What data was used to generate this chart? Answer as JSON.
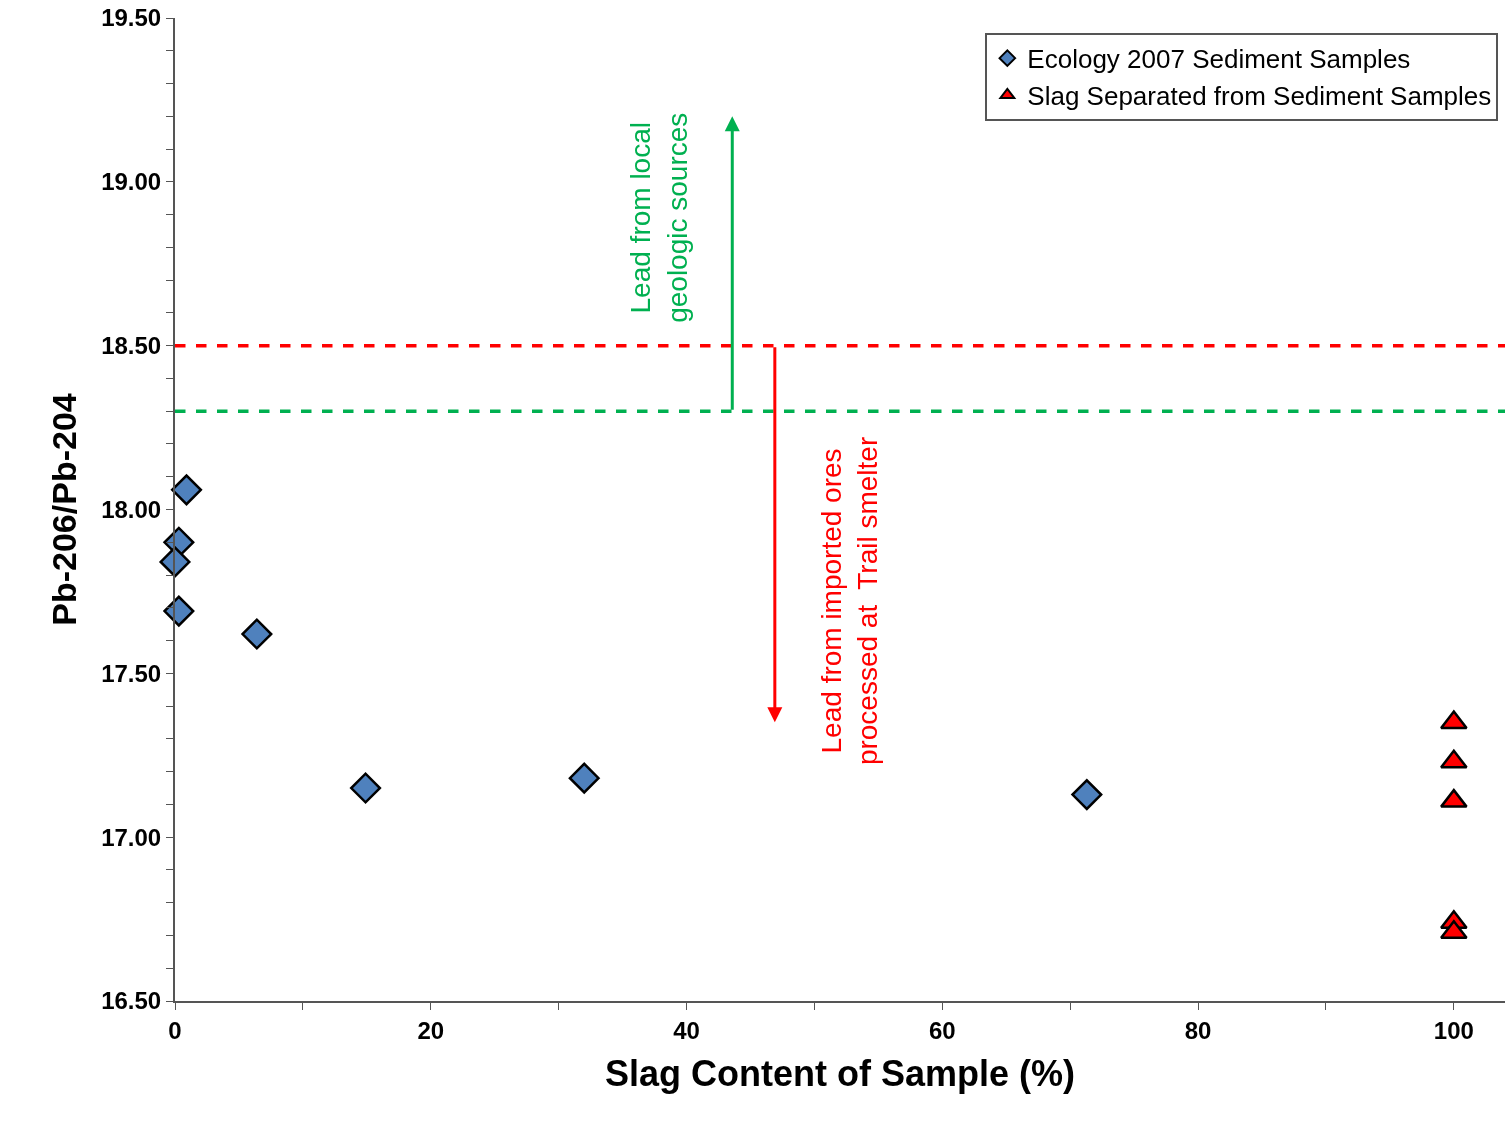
{
  "chart_data": {
    "type": "scatter",
    "xlabel": "Slag Content of Sample (%)",
    "ylabel": "Pb-206/Pb-204",
    "series": [
      {
        "name": "Ecology 2007 Sediment Samples",
        "color": "#4f81bd",
        "marker": "diamond",
        "x": [
          0.9,
          0.3,
          0,
          0.3,
          6.4,
          14.9,
          32,
          71.3
        ],
        "values": [
          18.06,
          17.9,
          17.84,
          17.69,
          17.62,
          17.15,
          17.18,
          17.13
        ]
      },
      {
        "name": "Slag Separated from Sediment Samples",
        "color": "#ff0000",
        "marker": "triangle",
        "x": [
          100,
          100,
          100,
          100,
          100
        ],
        "values": [
          17.35,
          17.23,
          17.11,
          16.74,
          16.71
        ]
      }
    ],
    "xlim": [
      0,
      104
    ],
    "xticks": [
      0,
      {
        "value": 10,
        "label": null
      },
      20,
      {
        "value": 30,
        "label": null
      },
      40,
      {
        "value": 50,
        "label": null
      },
      60,
      {
        "value": 70,
        "label": null
      },
      80,
      {
        "value": 90,
        "label": null
      },
      100
    ],
    "ylim": [
      16.5,
      19.5
    ],
    "yticks": [
      {
        "value": 16.5,
        "label": "16.50"
      },
      {
        "value": 16.6,
        "label": null
      },
      {
        "value": 16.7,
        "label": null
      },
      {
        "value": 16.8,
        "label": null
      },
      {
        "value": 16.9,
        "label": null
      },
      {
        "value": 17.0,
        "label": "17.00"
      },
      {
        "value": 17.1,
        "label": null
      },
      {
        "value": 17.2,
        "label": null
      },
      {
        "value": 17.3,
        "label": null
      },
      {
        "value": 17.4,
        "label": null
      },
      {
        "value": 17.5,
        "label": "17.50"
      },
      {
        "value": 17.6,
        "label": null
      },
      {
        "value": 17.7,
        "label": null
      },
      {
        "value": 17.8,
        "label": null
      },
      {
        "value": 17.9,
        "label": null
      },
      {
        "value": 18.0,
        "label": "18.00"
      },
      {
        "value": 18.1,
        "label": null
      },
      {
        "value": 18.2,
        "label": null
      },
      {
        "value": 18.3,
        "label": null
      },
      {
        "value": 18.4,
        "label": null
      },
      {
        "value": 18.5,
        "label": "18.50"
      },
      {
        "value": 18.6,
        "label": null
      },
      {
        "value": 18.7,
        "label": null
      },
      {
        "value": 18.8,
        "label": null
      },
      {
        "value": 18.9,
        "label": null
      },
      {
        "value": 19.0,
        "label": "19.00"
      },
      {
        "value": 19.1,
        "label": null
      },
      {
        "value": 19.2,
        "label": null
      },
      {
        "value": 19.3,
        "label": null
      },
      {
        "value": 19.4,
        "label": null
      },
      {
        "value": 19.5,
        "label": "19.50"
      }
    ],
    "ref_lines": [
      {
        "axis": "y",
        "value": 18.5,
        "color": "#ff0000",
        "line_style": "dashed"
      },
      {
        "axis": "y",
        "value": 18.3,
        "color": "#00b050",
        "line_style": "dashed"
      }
    ],
    "annotations": [
      "Lead from imported ores\nprocessed at  Trail smelter",
      "Lead from local\ngeologic sources"
    ],
    "grid": false,
    "legend": "top right"
  }
}
